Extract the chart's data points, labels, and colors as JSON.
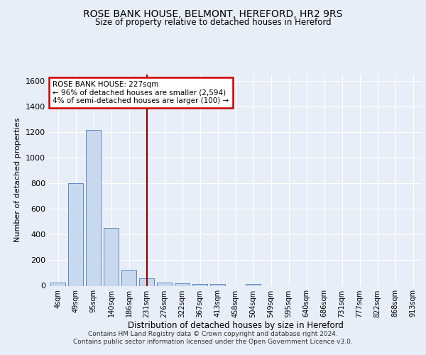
{
  "title1": "ROSE BANK HOUSE, BELMONT, HEREFORD, HR2 9RS",
  "title2": "Size of property relative to detached houses in Hereford",
  "xlabel": "Distribution of detached houses by size in Hereford",
  "ylabel": "Number of detached properties",
  "categories": [
    "4sqm",
    "49sqm",
    "95sqm",
    "140sqm",
    "186sqm",
    "231sqm",
    "276sqm",
    "322sqm",
    "367sqm",
    "413sqm",
    "458sqm",
    "504sqm",
    "549sqm",
    "595sqm",
    "640sqm",
    "686sqm",
    "731sqm",
    "777sqm",
    "822sqm",
    "868sqm",
    "913sqm"
  ],
  "values": [
    25,
    800,
    1220,
    450,
    125,
    60,
    25,
    20,
    15,
    15,
    0,
    15,
    0,
    0,
    0,
    0,
    0,
    0,
    0,
    0,
    0
  ],
  "bar_color": "#c8d8ee",
  "bar_edge_color": "#5b8ac5",
  "ylim": [
    0,
    1650
  ],
  "yticks": [
    0,
    200,
    400,
    600,
    800,
    1000,
    1200,
    1400,
    1600
  ],
  "vline_x_index": 5,
  "vline_color": "#8b0000",
  "annotation_text": "ROSE BANK HOUSE: 227sqm\n← 96% of detached houses are smaller (2,594)\n4% of semi-detached houses are larger (100) →",
  "annotation_box_color": "#ffffff",
  "annotation_box_edge": "#cc0000",
  "footer1": "Contains HM Land Registry data © Crown copyright and database right 2024.",
  "footer2": "Contains public sector information licensed under the Open Government Licence v3.0.",
  "background_color": "#e8eef8",
  "plot_bg_color": "#e8eef8"
}
